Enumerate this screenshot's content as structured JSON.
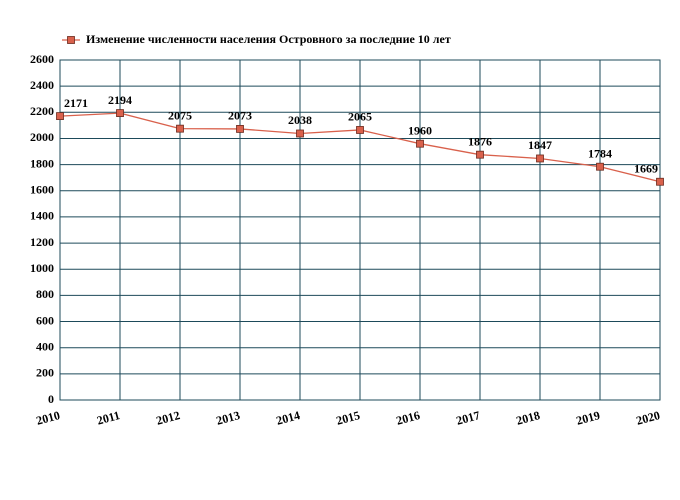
{
  "chart_data": {
    "type": "line",
    "x": [
      2010,
      2011,
      2012,
      2013,
      2014,
      2015,
      2016,
      2017,
      2018,
      2019,
      2020
    ],
    "series": [
      {
        "name": "Изменение численности населения Островного за последние 10 лет",
        "color": "#d9614c",
        "values": [
          2171,
          2194,
          2075,
          2073,
          2038,
          2065,
          1960,
          1876,
          1847,
          1784,
          1669
        ]
      }
    ],
    "xlim": [
      2010,
      2020
    ],
    "xticks": [
      2010,
      2011,
      2012,
      2013,
      2014,
      2015,
      2016,
      2017,
      2018,
      2019,
      2020
    ],
    "ylim": [
      0,
      2600
    ],
    "yticks": [
      0,
      200,
      400,
      600,
      800,
      1000,
      1200,
      1400,
      1600,
      1800,
      2000,
      2200,
      2400,
      2600
    ],
    "grid": true,
    "legend": "top"
  }
}
